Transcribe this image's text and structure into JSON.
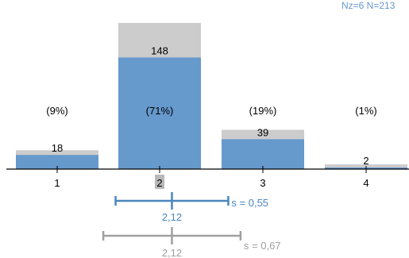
{
  "header": {
    "counts": "Nz=6  N=213"
  },
  "chart_data": {
    "type": "bar",
    "categories": [
      "1",
      "2",
      "3",
      "4"
    ],
    "ymax_percent": 100,
    "series": [
      {
        "values": [
          9,
          71,
          19,
          1
        ],
        "color": "#6699cc"
      },
      {
        "values": [
          12,
          93,
          25,
          3
        ],
        "color": "#cccccc"
      }
    ],
    "count_labels": [
      "18",
      "148",
      "39",
      "2"
    ],
    "percent_labels": [
      "(9%)",
      "(71%)",
      "(19%)",
      "(1%)"
    ],
    "highlighted_category": "2",
    "stats": [
      {
        "mean": 2.12,
        "sd": 0.55,
        "mean_label": "2,12",
        "sd_label": "s = 0,55",
        "color": "#4a86c0"
      },
      {
        "mean": 2.12,
        "sd": 0.67,
        "mean_label": "2,12",
        "sd_label": "s = 0,67",
        "color": "#a0a0a0"
      }
    ],
    "colors": {
      "header_text": "#6699cc",
      "axis": "#000000",
      "highlight_bg": "#b8b8b8"
    }
  }
}
